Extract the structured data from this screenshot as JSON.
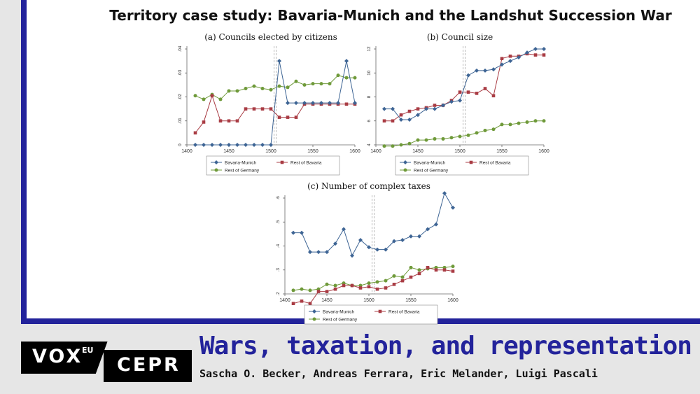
{
  "slide": {
    "title": "Territory case study: Bavaria-Munich and the Landshut Succession War"
  },
  "footer": {
    "logo_vox": "VOX",
    "logo_eu": "EU",
    "logo_cepr": "CEPR",
    "title": "Wars, taxation, and representation",
    "authors": "Sascha O. Becker, Andreas Ferrara, Eric Melander, Luigi Pascali"
  },
  "colors": {
    "bavaria_munich": "#3d6494",
    "rest_of_bavaria": "#a93c44",
    "rest_of_germany": "#6f9a3a",
    "accent": "#23239b"
  },
  "chart_data": [
    {
      "type": "line",
      "title": "(a) Councils elected by citizens",
      "xlim": [
        1400,
        1600
      ],
      "ylim": [
        0,
        0.04
      ],
      "xticks": [
        1400,
        1450,
        1500,
        1550,
        1600
      ],
      "yticks": [
        0,
        0.01,
        0.02,
        0.03,
        0.04
      ],
      "ytick_labels": [
        "0",
        ".01",
        ".02",
        ".03",
        ".04"
      ],
      "vline": 1505,
      "legend_position": "bottom",
      "x": [
        1410,
        1420,
        1430,
        1440,
        1450,
        1460,
        1470,
        1480,
        1490,
        1500,
        1510,
        1520,
        1530,
        1540,
        1550,
        1560,
        1570,
        1580,
        1590,
        1600
      ],
      "series": [
        {
          "name": "Bavaria-Munich",
          "marker": "diamond",
          "values": [
            0,
            0,
            0,
            0,
            0,
            0,
            0,
            0,
            0,
            0,
            0.035,
            0.0175,
            0.0175,
            0.0175,
            0.0175,
            0.0175,
            0.0175,
            0.0175,
            0.035,
            0.0175
          ]
        },
        {
          "name": "Rest of Bavaria",
          "marker": "square",
          "values": [
            0.005,
            0.0095,
            0.0205,
            0.01,
            0.01,
            0.01,
            0.015,
            0.015,
            0.015,
            0.015,
            0.0115,
            0.0115,
            0.0115,
            0.017,
            0.017,
            0.017,
            0.017,
            0.017,
            0.017,
            0.017
          ]
        },
        {
          "name": "Rest of Germany",
          "marker": "circle",
          "values": [
            0.0205,
            0.019,
            0.021,
            0.019,
            0.0225,
            0.0225,
            0.0235,
            0.0245,
            0.0235,
            0.023,
            0.0245,
            0.024,
            0.0265,
            0.025,
            0.0255,
            0.0255,
            0.0255,
            0.029,
            0.028,
            0.028
          ]
        }
      ]
    },
    {
      "type": "line",
      "title": "(b) Council size",
      "xlim": [
        1400,
        1600
      ],
      "ylim": [
        4,
        12
      ],
      "xticks": [
        1400,
        1450,
        1500,
        1550,
        1600
      ],
      "yticks": [
        4,
        6,
        8,
        10,
        12
      ],
      "ytick_labels": [
        "4",
        "6",
        "8",
        "10",
        "12"
      ],
      "vline": 1505,
      "legend_position": "bottom",
      "x": [
        1410,
        1420,
        1430,
        1440,
        1450,
        1460,
        1470,
        1480,
        1490,
        1500,
        1510,
        1520,
        1530,
        1540,
        1550,
        1560,
        1570,
        1580,
        1590,
        1600
      ],
      "series": [
        {
          "name": "Bavaria-Munich",
          "marker": "diamond",
          "values": [
            7,
            7,
            6.1,
            6.1,
            6.5,
            7,
            7,
            7.3,
            7.6,
            7.7,
            9.8,
            10.2,
            10.2,
            10.3,
            10.7,
            11,
            11.3,
            11.7,
            12,
            12
          ]
        },
        {
          "name": "Rest of Bavaria",
          "marker": "square",
          "values": [
            6,
            6,
            6.5,
            6.8,
            7,
            7.1,
            7.3,
            7.3,
            7.7,
            8.4,
            8.4,
            8.3,
            8.7,
            8.1,
            11.2,
            11.4,
            11.4,
            11.6,
            11.5,
            11.5
          ]
        },
        {
          "name": "Rest of Germany",
          "marker": "circle",
          "values": [
            3.9,
            3.9,
            4,
            4.1,
            4.4,
            4.4,
            4.5,
            4.5,
            4.6,
            4.7,
            4.8,
            5,
            5.2,
            5.3,
            5.7,
            5.7,
            5.8,
            5.9,
            6,
            6
          ]
        }
      ]
    },
    {
      "type": "line",
      "title": "(c) Number of complex taxes",
      "xlim": [
        1400,
        1600
      ],
      "ylim": [
        0.2,
        0.6
      ],
      "xticks": [
        1400,
        1450,
        1500,
        1550,
        1600
      ],
      "yticks": [
        0.2,
        0.3,
        0.4,
        0.5,
        0.6
      ],
      "ytick_labels": [
        ".2",
        ".3",
        ".4",
        ".5",
        ".6"
      ],
      "vline": 1505,
      "legend_position": "bottom",
      "x": [
        1410,
        1420,
        1430,
        1440,
        1450,
        1460,
        1470,
        1480,
        1490,
        1500,
        1510,
        1520,
        1530,
        1540,
        1550,
        1560,
        1570,
        1580,
        1590,
        1600
      ],
      "series": [
        {
          "name": "Bavaria-Munich",
          "marker": "diamond",
          "values": [
            0.455,
            0.455,
            0.375,
            0.375,
            0.375,
            0.41,
            0.47,
            0.36,
            0.425,
            0.395,
            0.385,
            0.385,
            0.42,
            0.425,
            0.44,
            0.44,
            0.47,
            0.49,
            0.62,
            0.56
          ]
        },
        {
          "name": "Rest of Bavaria",
          "marker": "square",
          "values": [
            0.16,
            0.17,
            0.16,
            0.21,
            0.21,
            0.22,
            0.235,
            0.235,
            0.225,
            0.23,
            0.22,
            0.225,
            0.24,
            0.255,
            0.27,
            0.285,
            0.31,
            0.3,
            0.3,
            0.295
          ]
        },
        {
          "name": "Rest of Germany",
          "marker": "circle",
          "values": [
            0.215,
            0.22,
            0.215,
            0.22,
            0.24,
            0.235,
            0.245,
            0.235,
            0.235,
            0.245,
            0.25,
            0.255,
            0.275,
            0.27,
            0.31,
            0.3,
            0.305,
            0.31,
            0.31,
            0.315
          ]
        }
      ]
    }
  ]
}
